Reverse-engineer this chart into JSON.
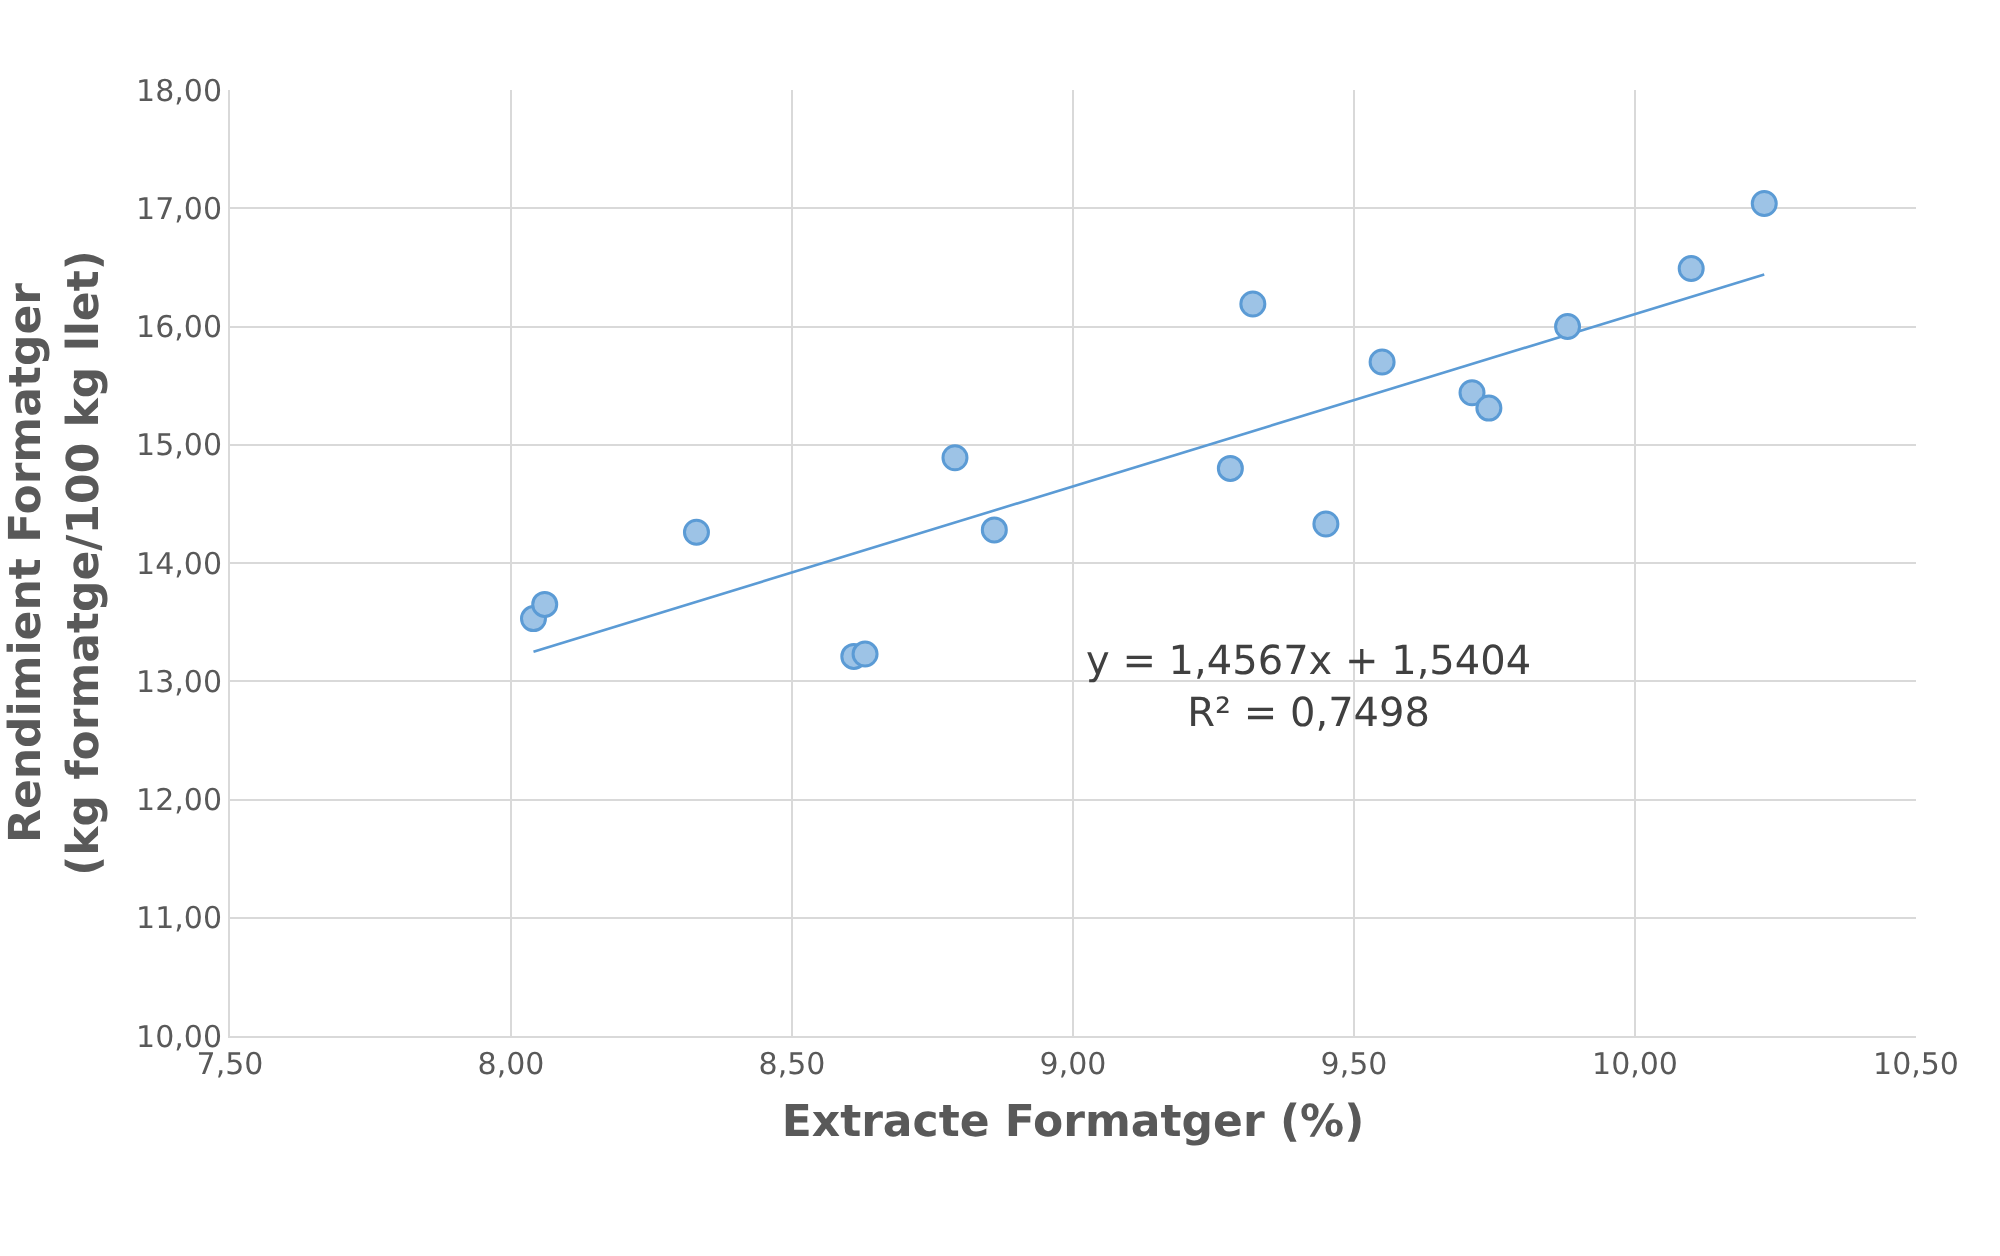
{
  "chart_data": {
    "type": "scatter",
    "xlabel": "Extracte Formatger (%)",
    "ylabel": "Rendimient Formatger\n(kg formatge/100 kg llet)",
    "xlim": [
      7.5,
      10.5
    ],
    "xticks": [
      {
        "value": 7.5,
        "label": "7,50"
      },
      {
        "value": 8,
        "label": "8,00"
      },
      {
        "value": 8.5,
        "label": "8,50"
      },
      {
        "value": 9,
        "label": "9,00"
      },
      {
        "value": 9.5,
        "label": "9,50"
      },
      {
        "value": 10,
        "label": "10,00"
      },
      {
        "value": 10.5,
        "label": "10,50"
      }
    ],
    "ylim": [
      10,
      18
    ],
    "yticks": [
      {
        "value": 10,
        "label": "10,00"
      },
      {
        "value": 11,
        "label": "11,00"
      },
      {
        "value": 12,
        "label": "12,00"
      },
      {
        "value": 13,
        "label": "13,00"
      },
      {
        "value": 14,
        "label": "14,00"
      },
      {
        "value": 15,
        "label": "15,00"
      },
      {
        "value": 16,
        "label": "16,00"
      },
      {
        "value": 17,
        "label": "17,00"
      },
      {
        "value": 18,
        "label": "18,00"
      }
    ],
    "grid": true,
    "series": [
      {
        "marker": "circle",
        "color": "#9dc3e6",
        "x": [
          8.04,
          8.06,
          8.33,
          8.61,
          8.63,
          8.79,
          8.86,
          9.28,
          9.32,
          9.45,
          9.55,
          9.71,
          9.74,
          9.88,
          10.1,
          10.23
        ],
        "values": [
          13.53,
          13.65,
          14.26,
          13.21,
          13.23,
          14.89,
          14.28,
          14.8,
          16.19,
          14.33,
          15.7,
          15.44,
          15.31,
          16.0,
          16.49,
          17.04
        ]
      },
      {
        "type": "line",
        "marker": "none",
        "color": "#5b9bd5",
        "x": [
          8.04,
          10.23
        ],
        "values": [
          13.25,
          16.44
        ]
      }
    ],
    "annotations": [
      "y = 1,4567x + 1,5404\nR² = 0,7498"
    ]
  }
}
